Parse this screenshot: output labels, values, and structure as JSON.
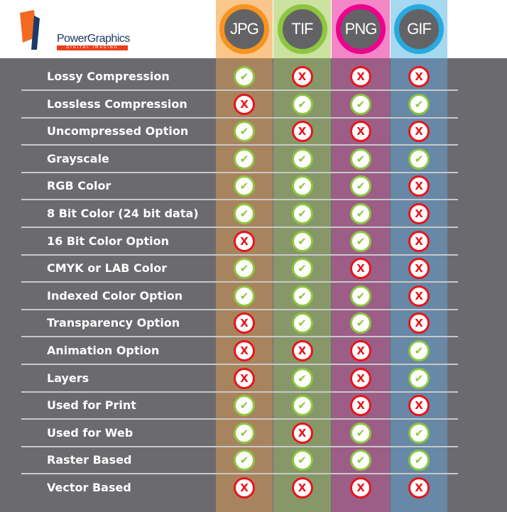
{
  "logo": {
    "name": "PowerGraphics",
    "tagline": "DIGITAL IMAGING"
  },
  "formats": [
    {
      "label": "JPG",
      "ring": "#f7941d",
      "head": "#f9c68c",
      "body": "#a8845e"
    },
    {
      "label": "TIF",
      "ring": "#8dc63f",
      "head": "#cbe2a0",
      "body": "#879868"
    },
    {
      "label": "PNG",
      "ring": "#ec008c",
      "head": "#f386c6",
      "body": "#9c5e86"
    },
    {
      "label": "GIF",
      "ring": "#27aae1",
      "head": "#a6d8f0",
      "body": "#6788a6"
    }
  ],
  "icons": {
    "yes": "check-icon",
    "no": "x-icon"
  },
  "features": [
    {
      "label": "Lossy Compression",
      "values": [
        true,
        false,
        false,
        false
      ]
    },
    {
      "label": "Lossless Compression",
      "values": [
        false,
        true,
        true,
        true
      ]
    },
    {
      "label": "Uncompressed Option",
      "values": [
        true,
        false,
        false,
        false
      ]
    },
    {
      "label": "Grayscale",
      "values": [
        true,
        true,
        true,
        true
      ]
    },
    {
      "label": "RGB Color",
      "values": [
        true,
        true,
        true,
        false
      ]
    },
    {
      "label": "8 Bit Color (24 bit data)",
      "values": [
        true,
        true,
        true,
        false
      ]
    },
    {
      "label": "16 Bit Color Option",
      "values": [
        false,
        true,
        true,
        false
      ]
    },
    {
      "label": "CMYK or LAB Color",
      "values": [
        true,
        true,
        false,
        false
      ]
    },
    {
      "label": "Indexed Color Option",
      "values": [
        true,
        true,
        true,
        false
      ]
    },
    {
      "label": "Transparency Option",
      "values": [
        false,
        true,
        true,
        false
      ]
    },
    {
      "label": "Animation Option",
      "values": [
        false,
        false,
        false,
        true
      ]
    },
    {
      "label": "Layers",
      "values": [
        false,
        true,
        false,
        true
      ]
    },
    {
      "label": "Used for Print",
      "values": [
        true,
        true,
        false,
        false
      ]
    },
    {
      "label": "Used for Web",
      "values": [
        true,
        false,
        true,
        true
      ]
    },
    {
      "label": "Raster Based",
      "values": [
        true,
        true,
        true,
        true
      ]
    },
    {
      "label": "Vector Based",
      "values": [
        false,
        false,
        false,
        false
      ]
    }
  ]
}
